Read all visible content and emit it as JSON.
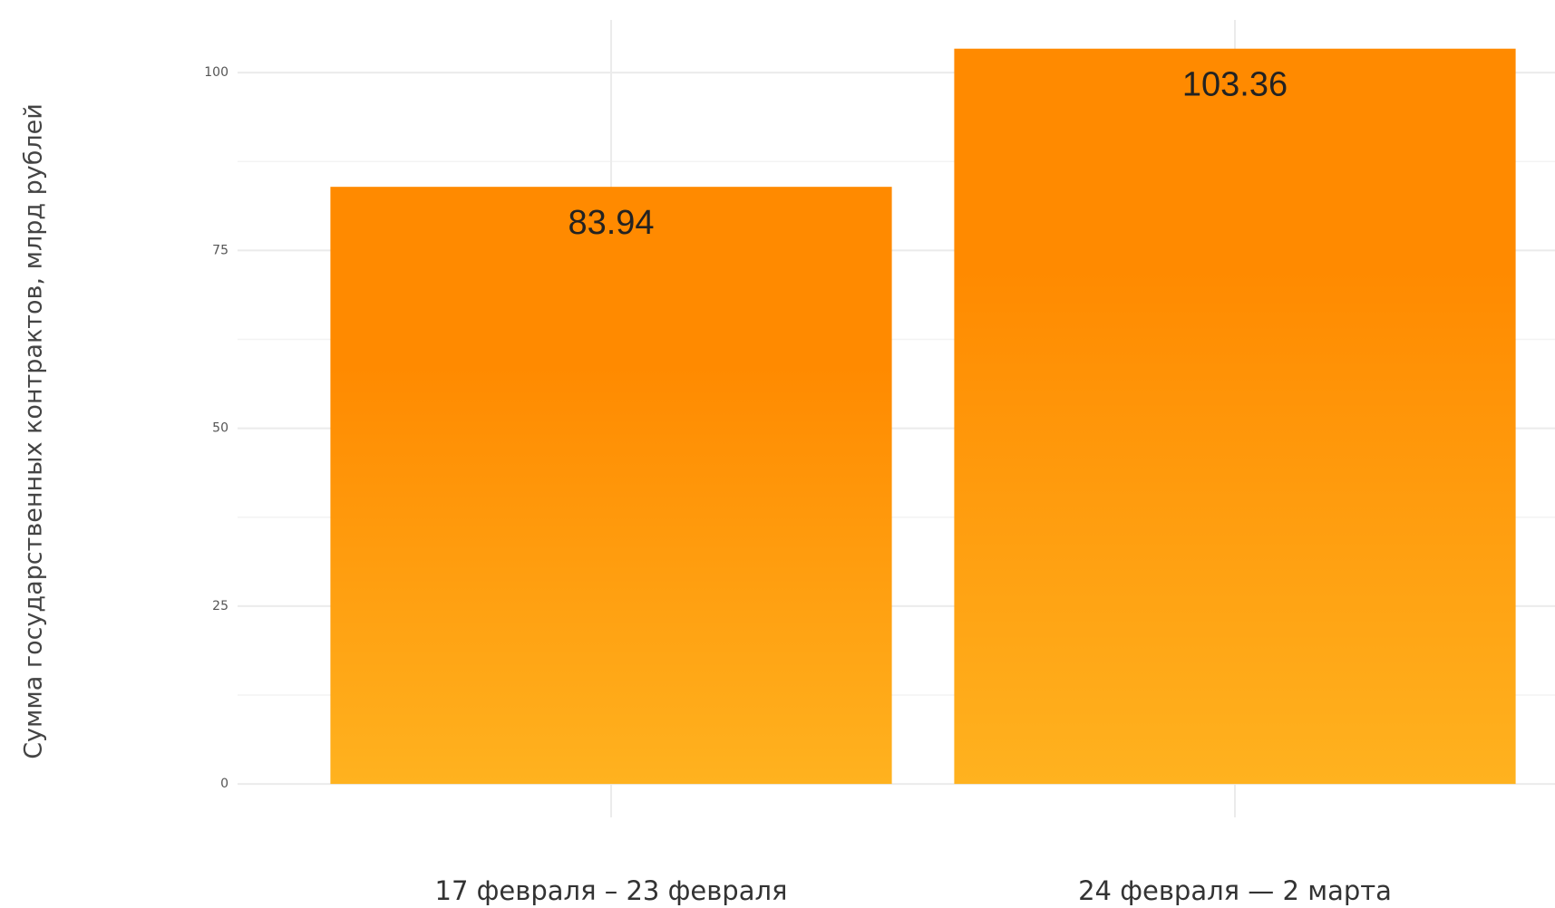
{
  "chart_data": {
    "type": "bar",
    "y_axis_label": "Сумма государственных контрактов, млрд рублей",
    "categories": [
      "17 февраля – 23 февраля",
      "24 февраля — 2 марта"
    ],
    "values": [
      83.94,
      103.36
    ],
    "color_top": "#ff8a00",
    "color_bottom": "#ffb21f",
    "ylim": [
      -4.7,
      107.4
    ],
    "yticks": [
      0,
      25,
      50,
      75,
      100
    ],
    "grid": true
  }
}
